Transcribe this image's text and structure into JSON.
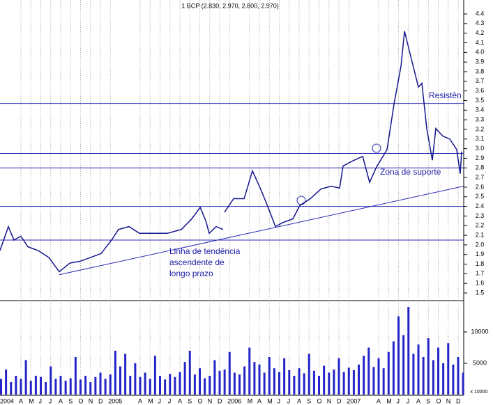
{
  "chart_data": [
    {
      "type": "line",
      "title": "1 BCP (2.830, 2.970, 2.800, 2.970)",
      "x": [
        0.89,
        1.74,
        2.3,
        3.0,
        3.7,
        4.75,
        5.81,
        6.86,
        7.91,
        8.96,
        10.02,
        11.07,
        12.12,
        12.82,
        13.88,
        14.93,
        16.33,
        17.74,
        19.14,
        20.19,
        21.04,
        21.6,
        21.95,
        22.65,
        23.35,
        23.42,
        23.49,
        24.4,
        25.46,
        26.3,
        27.21,
        27.91,
        28.61,
        29.32,
        30.37,
        31.07,
        32.12,
        33.18,
        34.23,
        35.07,
        35.42,
        36.33,
        37.39,
        38.09,
        38.79,
        39.84,
        40.54,
        41.25,
        41.6,
        42.3,
        43.0,
        43.35,
        43.84,
        44.4,
        44.75,
        45.46,
        46.16,
        46.86,
        47.21,
        47.35
      ],
      "series": [
        {
          "name": "BCP",
          "color": "#14148c",
          "values": [
            1.94,
            2.19,
            2.05,
            2.09,
            1.98,
            1.94,
            1.87,
            1.72,
            1.81,
            1.83,
            1.87,
            1.91,
            2.05,
            2.16,
            2.19,
            2.12,
            2.12,
            2.12,
            2.16,
            2.27,
            2.39,
            2.25,
            2.12,
            2.19,
            2.16,
            null,
            2.34,
            2.48,
            2.48,
            2.77,
            2.56,
            2.38,
            2.19,
            2.23,
            2.27,
            2.41,
            2.48,
            2.58,
            2.61,
            2.59,
            2.82,
            2.87,
            2.92,
            2.65,
            2.81,
            2.99,
            3.46,
            3.86,
            4.22,
            3.93,
            3.64,
            3.68,
            3.21,
            2.88,
            3.21,
            3.13,
            3.1,
            2.99,
            2.74,
            2.97
          ]
        }
      ],
      "xlim": [
        0.895,
        47.56
      ],
      "ylim": [
        1.435,
        4.545
      ],
      "yticks": [
        1.5,
        1.6,
        1.7,
        1.8,
        1.9,
        {
          "value": 2,
          "label": "2.0"
        },
        2.1,
        2.2,
        2.3,
        2.4,
        2.5,
        2.6,
        2.7,
        2.8,
        2.9,
        {
          "value": 3,
          "label": "3.0"
        },
        3.1,
        3.2,
        3.3,
        3.4,
        3.5,
        3.6,
        3.7,
        3.8,
        3.9,
        {
          "value": 4,
          "label": "4.0"
        },
        4.1,
        4.2,
        4.3,
        4.4
      ],
      "hlines": [
        3.47,
        2.95,
        2.8,
        2.4,
        2.05
      ],
      "hline_color": "#2828b4",
      "trendline": {
        "x": [
          6.86,
          47.56
        ],
        "y": [
          1.69,
          2.61
        ]
      },
      "annotations": [
        "Resistên",
        "Zona de suporte",
        "Linha de tendência",
        "ascendente de",
        "longo prazo"
      ],
      "annotation_color": "#1e1eaa",
      "grid": true
    },
    {
      "type": "bar",
      "x": [
        1.0,
        1.5,
        2.0,
        2.5,
        3.0,
        3.5,
        4.0,
        4.5,
        5.0,
        5.5,
        6.0,
        6.5,
        7.0,
        7.5,
        8.0,
        8.5,
        9.0,
        9.5,
        10.0,
        10.5,
        11.0,
        11.5,
        12.0,
        12.5,
        13.0,
        13.5,
        14.0,
        14.5,
        15.0,
        15.5,
        16.0,
        16.5,
        17.0,
        17.5,
        18.0,
        18.5,
        19.0,
        19.5,
        20.0,
        20.5,
        21.0,
        21.5,
        22.0,
        22.5,
        23.0,
        23.5,
        24.0,
        24.5,
        25.0,
        25.5,
        26.0,
        26.5,
        27.0,
        27.5,
        28.0,
        28.5,
        29.0,
        29.5,
        30.0,
        30.5,
        31.0,
        31.5,
        32.0,
        32.5,
        33.0,
        33.5,
        34.0,
        34.5,
        35.0,
        35.5,
        36.0,
        36.5,
        37.0,
        37.5,
        38.0,
        38.5,
        39.0,
        39.5,
        40.0,
        40.5,
        41.0,
        41.5,
        42.0,
        42.5,
        43.0,
        43.5,
        44.0,
        44.5,
        45.0,
        45.5,
        46.0,
        46.5,
        47.0,
        47.5
      ],
      "values": [
        2500,
        4000,
        2000,
        3000,
        2500,
        5500,
        2200,
        3000,
        2800,
        2000,
        4500,
        2500,
        3000,
        2200,
        2600,
        6000,
        2400,
        3000,
        2000,
        2800,
        3500,
        2500,
        3200,
        7000,
        4500,
        6500,
        3000,
        5000,
        2800,
        3500,
        2500,
        6200,
        3000,
        2400,
        3300,
        2800,
        3600,
        5200,
        7000,
        3200,
        4200,
        2600,
        3000,
        5500,
        3800,
        4000,
        6800,
        3500,
        3200,
        4500,
        7500,
        5200,
        4800,
        3500,
        6000,
        4200,
        3600,
        5800,
        3900,
        3000,
        4200,
        3400,
        6500,
        3800,
        3000,
        4600,
        3500,
        4000,
        5800,
        3600,
        4300,
        3900,
        4800,
        6200,
        7500,
        4400,
        5800,
        4200,
        6800,
        8500,
        12500,
        9500,
        14000,
        6500,
        8000,
        6000,
        9000,
        5500,
        7500,
        5000,
        8200,
        4800,
        6000,
        3500
      ],
      "color": "#2424c8",
      "ylim": [
        0,
        14667
      ],
      "yticks": [
        5000,
        10000
      ],
      "axis_label": "x 10000",
      "xticks": [
        {
          "value": 0,
          "label": "2004"
        },
        {
          "value": 3,
          "label": "A"
        },
        {
          "value": 4,
          "label": "M"
        },
        {
          "value": 5,
          "label": "J"
        },
        {
          "value": 6,
          "label": "J"
        },
        {
          "value": 7,
          "label": "A"
        },
        {
          "value": 8,
          "label": "S"
        },
        {
          "value": 9,
          "label": "O"
        },
        {
          "value": 10,
          "label": "N"
        },
        {
          "value": 11,
          "label": "D"
        },
        {
          "value": 12,
          "label": "2005"
        },
        {
          "value": 15,
          "label": "A"
        },
        {
          "value": 16,
          "label": "M"
        },
        {
          "value": 17,
          "label": "J"
        },
        {
          "value": 18,
          "label": "J"
        },
        {
          "value": 19,
          "label": "A"
        },
        {
          "value": 20,
          "label": "S"
        },
        {
          "value": 21,
          "label": "O"
        },
        {
          "value": 22,
          "label": "N"
        },
        {
          "value": 23,
          "label": "D"
        },
        {
          "value": 24,
          "label": "2006"
        },
        {
          "value": 26,
          "label": "M"
        },
        {
          "value": 27,
          "label": "A"
        },
        {
          "value": 28,
          "label": "M"
        },
        {
          "value": 29,
          "label": "J"
        },
        {
          "value": 30,
          "label": "J"
        },
        {
          "value": 31,
          "label": "A"
        },
        {
          "value": 32,
          "label": "S"
        },
        {
          "value": 33,
          "label": "O"
        },
        {
          "value": 34,
          "label": "N"
        },
        {
          "value": 35,
          "label": "D"
        },
        {
          "value": 36,
          "label": "2007"
        },
        {
          "value": 39,
          "label": "A"
        },
        {
          "value": 40,
          "label": "M"
        },
        {
          "value": 41,
          "label": "J"
        },
        {
          "value": 42,
          "label": "J"
        },
        {
          "value": 43,
          "label": "A"
        },
        {
          "value": 44,
          "label": "S"
        },
        {
          "value": 45,
          "label": "O"
        },
        {
          "value": 46,
          "label": "N"
        },
        {
          "value": 47,
          "label": "D"
        }
      ]
    }
  ]
}
